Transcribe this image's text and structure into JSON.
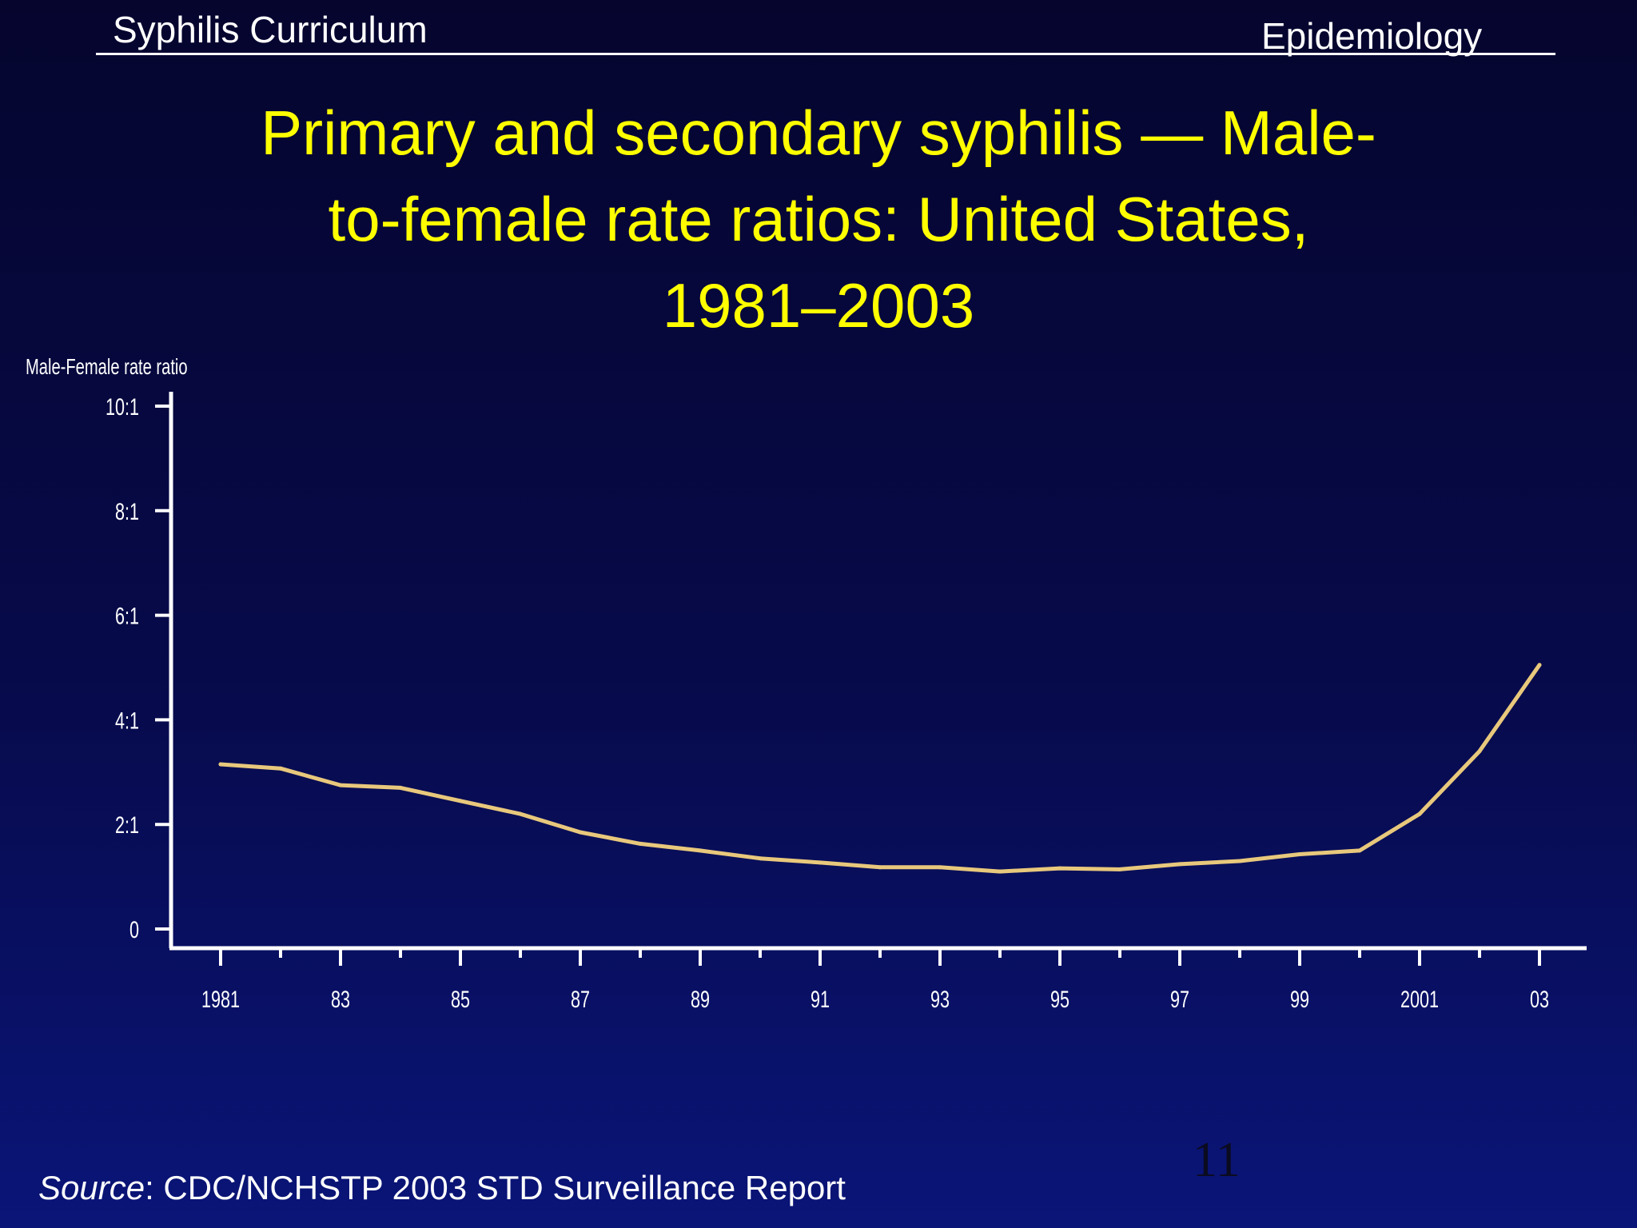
{
  "header": {
    "left_label": "Syphilis Curriculum",
    "right_label": "Epidemiology"
  },
  "slide_number": "11",
  "source": {
    "prefix": "Source",
    "text": ": CDC/NCHSTP 2003 STD Surveillance Report"
  },
  "colors": {
    "title": "#ffff00",
    "series_line": "#e8c87c",
    "axis": "#ffffff",
    "background_top": "#05052e",
    "background_bottom": "#0a1578"
  },
  "chart_data": {
    "type": "line",
    "title_lines": [
      "Primary and secondary syphilis — Male-",
      "to-female rate ratios: United States,",
      "1981–2003"
    ],
    "ylabel": "Male-Female rate ratio",
    "xlabel": "",
    "ylim": [
      0,
      10
    ],
    "y_ticks": [
      {
        "value": 0,
        "label": "0"
      },
      {
        "value": 2,
        "label": "2:1"
      },
      {
        "value": 4,
        "label": "4:1"
      },
      {
        "value": 6,
        "label": "6:1"
      },
      {
        "value": 8,
        "label": "8:1"
      },
      {
        "value": 10,
        "label": "10:1"
      }
    ],
    "xlim": [
      1981,
      2003
    ],
    "x_tick_years": [
      1981,
      1982,
      1983,
      1984,
      1985,
      1986,
      1987,
      1988,
      1989,
      1990,
      1991,
      1992,
      1993,
      1994,
      1995,
      1996,
      1997,
      1998,
      1999,
      2000,
      2001,
      2002,
      2003
    ],
    "x_labels": [
      {
        "year": 1981,
        "label": "1981"
      },
      {
        "year": 1983,
        "label": "83"
      },
      {
        "year": 1985,
        "label": "85"
      },
      {
        "year": 1987,
        "label": "87"
      },
      {
        "year": 1989,
        "label": "89"
      },
      {
        "year": 1991,
        "label": "91"
      },
      {
        "year": 1993,
        "label": "93"
      },
      {
        "year": 1995,
        "label": "95"
      },
      {
        "year": 1997,
        "label": "97"
      },
      {
        "year": 1999,
        "label": "99"
      },
      {
        "year": 2001,
        "label": "2001"
      },
      {
        "year": 2003,
        "label": "03"
      }
    ],
    "grid": false,
    "legend": "none",
    "series": [
      {
        "x": [
          1981,
          1982,
          1983,
          1984,
          1985,
          1986,
          1987,
          1988,
          1989,
          1990,
          1991,
          1992,
          1993,
          1994,
          1995,
          1996,
          1997,
          1998,
          1999,
          2000,
          2001,
          2002,
          2003
        ],
        "values": [
          3.15,
          3.07,
          2.75,
          2.7,
          2.45,
          2.2,
          1.85,
          1.63,
          1.5,
          1.35,
          1.27,
          1.18,
          1.18,
          1.1,
          1.16,
          1.14,
          1.24,
          1.3,
          1.43,
          1.5,
          2.2,
          3.4,
          5.05
        ]
      }
    ]
  }
}
